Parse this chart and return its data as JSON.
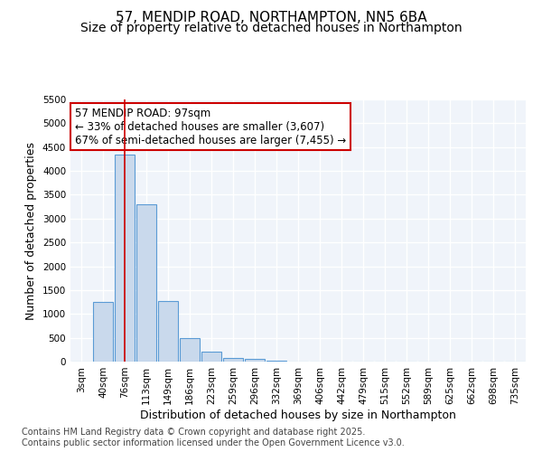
{
  "title": "57, MENDIP ROAD, NORTHAMPTON, NN5 6BA",
  "subtitle": "Size of property relative to detached houses in Northampton",
  "xlabel": "Distribution of detached houses by size in Northampton",
  "ylabel": "Number of detached properties",
  "footer_line1": "Contains HM Land Registry data © Crown copyright and database right 2025.",
  "footer_line2": "Contains public sector information licensed under the Open Government Licence v3.0.",
  "bin_labels": [
    "3sqm",
    "40sqm",
    "76sqm",
    "113sqm",
    "149sqm",
    "186sqm",
    "223sqm",
    "259sqm",
    "296sqm",
    "332sqm",
    "369sqm",
    "406sqm",
    "442sqm",
    "479sqm",
    "515sqm",
    "552sqm",
    "589sqm",
    "625sqm",
    "662sqm",
    "698sqm",
    "735sqm"
  ],
  "bar_values": [
    0,
    1250,
    4350,
    3300,
    1280,
    500,
    210,
    85,
    50,
    20,
    5,
    0,
    0,
    0,
    0,
    0,
    0,
    0,
    0,
    0,
    0
  ],
  "bar_color": "#c9d9ec",
  "bar_edge_color": "#5b9bd5",
  "ylim": [
    0,
    5500
  ],
  "yticks": [
    0,
    500,
    1000,
    1500,
    2000,
    2500,
    3000,
    3500,
    4000,
    4500,
    5000,
    5500
  ],
  "red_line_x": 2.0,
  "annotation_text_line1": "57 MENDIP ROAD: 97sqm",
  "annotation_text_line2": "← 33% of detached houses are smaller (3,607)",
  "annotation_text_line3": "67% of semi-detached houses are larger (7,455) →",
  "annotation_box_color": "#ffffff",
  "annotation_border_color": "#cc0000",
  "background_color": "#f0f4fa",
  "grid_color": "#ffffff",
  "title_fontsize": 11,
  "subtitle_fontsize": 10,
  "axis_label_fontsize": 9,
  "tick_fontsize": 7.5,
  "footer_fontsize": 7
}
